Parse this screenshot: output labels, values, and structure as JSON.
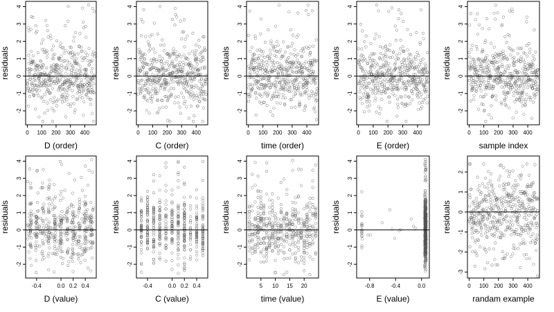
{
  "chart_data": [
    {
      "type": "scatter",
      "xlabel": "D (order)",
      "ylabel": "residuals",
      "xlim": [
        -12,
        480
      ],
      "ylim": [
        -2.8,
        4.3
      ],
      "xticks": [
        0,
        100,
        200,
        300,
        400
      ],
      "yticks": [
        -2,
        -1,
        0,
        1,
        2,
        3,
        4
      ],
      "hline": 0,
      "x_kind": "order",
      "seed": 11,
      "n": 470,
      "grid": false
    },
    {
      "type": "scatter",
      "xlabel": "C (order)",
      "ylabel": "residuals",
      "xlim": [
        -12,
        480
      ],
      "ylim": [
        -2.8,
        4.3
      ],
      "xticks": [
        0,
        100,
        200,
        300,
        400
      ],
      "yticks": [
        -2,
        -1,
        0,
        1,
        2,
        3,
        4
      ],
      "hline": 0,
      "x_kind": "order",
      "seed": 23,
      "n": 470,
      "grid": false
    },
    {
      "type": "scatter",
      "xlabel": "time (order)",
      "ylabel": "residuals",
      "xlim": [
        -12,
        480
      ],
      "ylim": [
        -2.8,
        4.3
      ],
      "xticks": [
        0,
        100,
        200,
        300,
        400
      ],
      "yticks": [
        -2,
        -1,
        0,
        1,
        2,
        3,
        4
      ],
      "hline": 0,
      "x_kind": "order",
      "seed": 37,
      "n": 470,
      "grid": false
    },
    {
      "type": "scatter",
      "xlabel": "E (order)",
      "ylabel": "residuals",
      "xlim": [
        -12,
        480
      ],
      "ylim": [
        -2.8,
        4.3
      ],
      "xticks": [
        0,
        100,
        200,
        300,
        400
      ],
      "yticks": [
        -2,
        -1,
        0,
        1,
        2,
        3,
        4
      ],
      "hline": 0,
      "x_kind": "order",
      "seed": 41,
      "n": 470,
      "grid": false
    },
    {
      "type": "scatter",
      "xlabel": "sample index",
      "ylabel": "residuals",
      "xlim": [
        -12,
        480
      ],
      "ylim": [
        -2.8,
        4.3
      ],
      "xticks": [
        0,
        100,
        200,
        300,
        400
      ],
      "yticks": [
        -2,
        -1,
        0,
        1,
        2,
        3,
        4
      ],
      "hline": 0,
      "x_kind": "order",
      "seed": 53,
      "n": 470,
      "grid": false
    },
    {
      "type": "scatter",
      "xlabel": "D (value)",
      "ylabel": "residuals",
      "xlim": [
        -0.58,
        0.58
      ],
      "ylim": [
        -2.8,
        4.3
      ],
      "xticks": [
        -0.4,
        0.0,
        0.2,
        0.4
      ],
      "xticklabels": [
        "-0.4",
        "0.0",
        "0.2",
        "0.4"
      ],
      "yticks": [
        -2,
        -1,
        0,
        1,
        2,
        3,
        4
      ],
      "hline": 0,
      "x_kind": "continuous",
      "xrange": [
        -0.55,
        0.55
      ],
      "seed": 61,
      "n": 470,
      "grid": false
    },
    {
      "type": "scatter",
      "xlabel": "C (value)",
      "ylabel": "residuals",
      "xlim": [
        -0.58,
        0.58
      ],
      "ylim": [
        -2.8,
        4.3
      ],
      "xticks": [
        -0.4,
        0.0,
        0.2,
        0.4
      ],
      "xticklabels": [
        "-0.4",
        "0.0",
        "0.2",
        "0.4"
      ],
      "yticks": [
        -2,
        -1,
        0,
        1,
        2,
        3,
        4
      ],
      "hline": 0,
      "x_kind": "discrete",
      "levels": [
        -0.5,
        -0.4,
        -0.3,
        -0.2,
        -0.1,
        0.0,
        0.1,
        0.2,
        0.3,
        0.4,
        0.5
      ],
      "seed": 71,
      "n": 470,
      "grid": false
    },
    {
      "type": "scatter",
      "xlabel": "time (value)",
      "ylabel": "residuals",
      "xlim": [
        0,
        25
      ],
      "ylim": [
        -2.8,
        4.3
      ],
      "xticks": [
        5,
        10,
        15,
        20
      ],
      "xticklabels": [
        "5",
        "10",
        "15",
        "20"
      ],
      "yticks": [
        -2,
        -1,
        0,
        1,
        2,
        3,
        4
      ],
      "hline": 0,
      "x_kind": "discrete",
      "levels": [
        1,
        2,
        3,
        4,
        5,
        6,
        7,
        8,
        9,
        10,
        11,
        12,
        13,
        14,
        15,
        16,
        17,
        18,
        19,
        20,
        21,
        22,
        23,
        24
      ],
      "seed": 83,
      "n": 470,
      "grid": false
    },
    {
      "type": "scatter",
      "xlabel": "E (value)",
      "ylabel": "residuals",
      "xlim": [
        -1.0,
        0.12
      ],
      "ylim": [
        -2.8,
        4.3
      ],
      "xticks": [
        -0.8,
        -0.4,
        0.0
      ],
      "xticklabels": [
        "-0.8",
        "-0.4",
        "0.0"
      ],
      "yticks": [
        -2,
        -1,
        0,
        1,
        2,
        3,
        4
      ],
      "hline": 0,
      "x_kind": "E",
      "seed": 97,
      "n": 470,
      "grid": false
    },
    {
      "type": "scatter",
      "xlabel": "randam example",
      "ylabel": "residuals",
      "xlim": [
        -12,
        480
      ],
      "ylim": [
        -3.3,
        2.8
      ],
      "xticks": [
        0,
        100,
        200,
        300,
        400
      ],
      "yticks": [
        -3,
        -2,
        -1,
        0,
        1,
        2
      ],
      "hline": 0,
      "x_kind": "random",
      "seed": 101,
      "n": 470,
      "grid": false
    }
  ]
}
